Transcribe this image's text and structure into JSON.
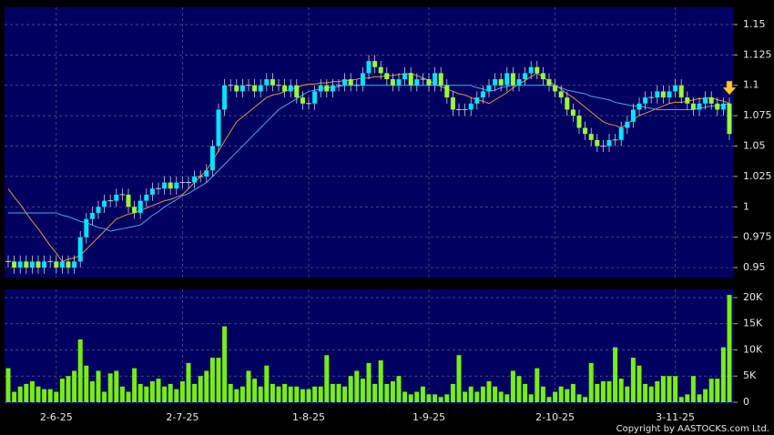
{
  "chart_data": [
    {
      "type": "candlestick",
      "open": [
        0.955,
        0.955,
        0.95,
        0.955,
        0.95,
        0.955,
        0.95,
        0.955,
        0.955,
        0.95,
        0.955,
        0.95,
        0.955,
        0.975,
        0.99,
        0.995,
        1.0,
        1.005,
        1.005,
        1.01,
        1.01,
        1.0,
        0.995,
        1.005,
        1.01,
        1.015,
        1.015,
        1.02,
        1.015,
        1.02,
        1.02,
        1.02,
        1.025,
        1.025,
        1.03,
        1.05,
        1.08,
        1.1,
        1.1,
        1.095,
        1.1,
        1.1,
        1.095,
        1.1,
        1.105,
        1.1,
        1.1,
        1.095,
        1.1,
        1.09,
        1.085,
        1.085,
        1.095,
        1.1,
        1.095,
        1.1,
        1.1,
        1.105,
        1.1,
        1.1,
        1.11,
        1.12,
        1.115,
        1.11,
        1.105,
        1.1,
        1.105,
        1.11,
        1.1,
        1.105,
        1.105,
        1.1,
        1.11,
        1.1,
        1.09,
        1.08,
        1.08,
        1.08,
        1.085,
        1.09,
        1.095,
        1.1,
        1.105,
        1.1,
        1.11,
        1.1,
        1.105,
        1.11,
        1.115,
        1.11,
        1.105,
        1.1,
        1.095,
        1.09,
        1.08,
        1.075,
        1.065,
        1.06,
        1.055,
        1.05,
        1.05,
        1.055,
        1.055,
        1.065,
        1.07,
        1.08,
        1.085,
        1.09,
        1.09,
        1.095,
        1.09,
        1.095,
        1.1,
        1.09,
        1.085,
        1.08,
        1.085,
        1.09,
        1.085,
        1.08,
        1.085
      ],
      "high": [
        0.96,
        0.96,
        0.96,
        0.96,
        0.96,
        0.96,
        0.96,
        0.96,
        0.96,
        0.96,
        0.96,
        0.96,
        0.98,
        0.995,
        1.0,
        1.005,
        1.01,
        1.01,
        1.015,
        1.015,
        1.015,
        1.005,
        1.01,
        1.015,
        1.02,
        1.02,
        1.025,
        1.025,
        1.025,
        1.025,
        1.025,
        1.03,
        1.03,
        1.035,
        1.055,
        1.085,
        1.105,
        1.105,
        1.105,
        1.105,
        1.105,
        1.105,
        1.105,
        1.11,
        1.11,
        1.105,
        1.105,
        1.105,
        1.105,
        1.095,
        1.09,
        1.1,
        1.105,
        1.105,
        1.105,
        1.105,
        1.11,
        1.11,
        1.105,
        1.115,
        1.125,
        1.125,
        1.12,
        1.115,
        1.11,
        1.11,
        1.115,
        1.115,
        1.11,
        1.11,
        1.11,
        1.115,
        1.115,
        1.105,
        1.095,
        1.085,
        1.085,
        1.09,
        1.095,
        1.1,
        1.105,
        1.11,
        1.11,
        1.115,
        1.115,
        1.11,
        1.115,
        1.12,
        1.12,
        1.115,
        1.11,
        1.105,
        1.1,
        1.095,
        1.085,
        1.08,
        1.07,
        1.065,
        1.06,
        1.055,
        1.06,
        1.06,
        1.07,
        1.075,
        1.085,
        1.09,
        1.095,
        1.095,
        1.1,
        1.1,
        1.1,
        1.105,
        1.105,
        1.095,
        1.09,
        1.09,
        1.095,
        1.095,
        1.09,
        1.09,
        1.09
      ],
      "low": [
        0.95,
        0.945,
        0.945,
        0.945,
        0.945,
        0.945,
        0.945,
        0.95,
        0.945,
        0.945,
        0.945,
        0.945,
        0.95,
        0.97,
        0.985,
        0.99,
        0.995,
        1.0,
        1.0,
        1.005,
        0.995,
        0.99,
        0.99,
        1.0,
        1.005,
        1.01,
        1.01,
        1.01,
        1.01,
        1.015,
        1.015,
        1.015,
        1.02,
        1.02,
        1.025,
        1.045,
        1.075,
        1.095,
        1.09,
        1.09,
        1.095,
        1.09,
        1.09,
        1.095,
        1.095,
        1.095,
        1.09,
        1.09,
        1.085,
        1.08,
        1.08,
        1.08,
        1.09,
        1.09,
        1.09,
        1.095,
        1.095,
        1.095,
        1.095,
        1.095,
        1.105,
        1.11,
        1.105,
        1.1,
        1.095,
        1.095,
        1.1,
        1.095,
        1.095,
        1.1,
        1.095,
        1.095,
        1.095,
        1.085,
        1.075,
        1.075,
        1.075,
        1.075,
        1.08,
        1.085,
        1.09,
        1.095,
        1.095,
        1.095,
        1.095,
        1.095,
        1.1,
        1.105,
        1.105,
        1.1,
        1.095,
        1.09,
        1.085,
        1.075,
        1.07,
        1.06,
        1.055,
        1.05,
        1.045,
        1.045,
        1.045,
        1.05,
        1.05,
        1.06,
        1.065,
        1.075,
        1.08,
        1.085,
        1.085,
        1.085,
        1.085,
        1.09,
        1.085,
        1.08,
        1.075,
        1.075,
        1.08,
        1.08,
        1.075,
        1.075,
        1.055
      ],
      "close": [
        0.955,
        0.95,
        0.955,
        0.95,
        0.955,
        0.95,
        0.955,
        0.955,
        0.95,
        0.955,
        0.95,
        0.955,
        0.975,
        0.99,
        0.995,
        1.0,
        1.005,
        1.005,
        1.01,
        1.01,
        1.0,
        0.995,
        1.005,
        1.01,
        1.015,
        1.015,
        1.02,
        1.015,
        1.02,
        1.02,
        1.02,
        1.025,
        1.025,
        1.03,
        1.05,
        1.08,
        1.1,
        1.1,
        1.095,
        1.1,
        1.1,
        1.095,
        1.1,
        1.105,
        1.1,
        1.1,
        1.095,
        1.1,
        1.09,
        1.085,
        1.085,
        1.095,
        1.1,
        1.095,
        1.1,
        1.1,
        1.105,
        1.1,
        1.1,
        1.11,
        1.12,
        1.115,
        1.11,
        1.105,
        1.1,
        1.105,
        1.11,
        1.1,
        1.105,
        1.105,
        1.1,
        1.11,
        1.1,
        1.09,
        1.08,
        1.08,
        1.08,
        1.085,
        1.09,
        1.095,
        1.1,
        1.105,
        1.1,
        1.11,
        1.1,
        1.105,
        1.11,
        1.115,
        1.11,
        1.105,
        1.1,
        1.095,
        1.09,
        1.08,
        1.075,
        1.065,
        1.06,
        1.055,
        1.05,
        1.05,
        1.055,
        1.055,
        1.065,
        1.07,
        1.08,
        1.085,
        1.09,
        1.09,
        1.095,
        1.09,
        1.095,
        1.1,
        1.09,
        1.085,
        1.08,
        1.085,
        1.09,
        1.085,
        1.08,
        1.085,
        1.06
      ],
      "series": [
        {
          "color": "#e8903a",
          "values": [
            1.015,
            1.008,
            1.002,
            0.995,
            0.988,
            0.982,
            0.975,
            0.968,
            0.962,
            0.955,
            0.957,
            0.958,
            0.96,
            0.965,
            0.97,
            0.975,
            0.98,
            0.985,
            0.99,
            0.992,
            0.994,
            0.995,
            0.997,
            0.999,
            1.001,
            1.003,
            1.005,
            1.006,
            1.008,
            1.01,
            1.015,
            1.02,
            1.025,
            1.03,
            1.038,
            1.046,
            1.054,
            1.062,
            1.07,
            1.074,
            1.078,
            1.082,
            1.086,
            1.09,
            1.092,
            1.093,
            1.095,
            1.097,
            1.098,
            1.1,
            1.101,
            1.101,
            1.102,
            1.102,
            1.103,
            1.103,
            1.104,
            1.104,
            1.105,
            1.106,
            1.106,
            1.107,
            1.107,
            1.108,
            1.108,
            1.109,
            1.109,
            1.11,
            1.108,
            1.106,
            1.104,
            1.101,
            1.099,
            1.097,
            1.095,
            1.093,
            1.092,
            1.09,
            1.088,
            1.087,
            1.085,
            1.088,
            1.091,
            1.094,
            1.098,
            1.101,
            1.104,
            1.107,
            1.11,
            1.107,
            1.103,
            1.1,
            1.097,
            1.093,
            1.09,
            1.086,
            1.082,
            1.078,
            1.074,
            1.07,
            1.068,
            1.067,
            1.065,
            1.068,
            1.072,
            1.075,
            1.077,
            1.079,
            1.081,
            1.083,
            1.085,
            1.086,
            1.086,
            1.087,
            1.088,
            1.089,
            1.089,
            1.09,
            1.088,
            1.087,
            1.085
          ]
        },
        {
          "color": "#4aa8e8",
          "values": [
            0.995,
            0.995,
            0.995,
            0.995,
            0.995,
            0.995,
            0.995,
            0.995,
            0.995,
            0.993,
            0.992,
            0.99,
            0.988,
            0.987,
            0.985,
            0.983,
            0.982,
            0.98,
            0.981,
            0.982,
            0.983,
            0.984,
            0.985,
            0.989,
            0.993,
            0.996,
            1.0,
            1.003,
            1.006,
            1.009,
            1.011,
            1.014,
            1.017,
            1.02,
            1.025,
            1.03,
            1.035,
            1.04,
            1.045,
            1.05,
            1.055,
            1.06,
            1.065,
            1.07,
            1.075,
            1.08,
            1.083,
            1.086,
            1.089,
            1.092,
            1.095,
            1.096,
            1.097,
            1.098,
            1.098,
            1.099,
            1.1,
            1.1,
            1.1,
            1.1,
            1.1,
            1.1,
            1.1,
            1.1,
            1.1,
            1.1,
            1.1,
            1.1,
            1.1,
            1.1,
            1.1,
            1.1,
            1.1,
            1.1,
            1.1,
            1.1,
            1.1,
            1.1,
            1.098,
            1.097,
            1.095,
            1.096,
            1.098,
            1.099,
            1.1,
            1.1,
            1.1,
            1.1,
            1.1,
            1.1,
            1.1,
            1.099,
            1.098,
            1.096,
            1.095,
            1.094,
            1.093,
            1.091,
            1.09,
            1.089,
            1.088,
            1.086,
            1.085,
            1.084,
            1.083,
            1.083,
            1.082,
            1.081,
            1.08,
            1.08,
            1.08,
            1.08,
            1.08,
            1.08,
            1.08,
            1.081,
            1.082,
            1.083,
            1.083,
            1.084,
            1.085
          ]
        }
      ],
      "up_color": "#00e5ff",
      "down_color": "#99ff33",
      "doji_color": "#c8c8d8",
      "ylim": [
        0.9418,
        1.1642
      ],
      "yticks": [
        0.95,
        0.975,
        1,
        1.025,
        1.05,
        1.075,
        1.1,
        1.125,
        1.15
      ],
      "grid": true
    },
    {
      "type": "bar",
      "categories": [
        null,
        null,
        null,
        null,
        null,
        null,
        null,
        null,
        "2-6-25",
        null,
        null,
        null,
        null,
        null,
        null,
        null,
        null,
        null,
        null,
        null,
        null,
        null,
        null,
        null,
        null,
        null,
        null,
        null,
        null,
        "2-7-25",
        null,
        null,
        null,
        null,
        null,
        null,
        null,
        null,
        null,
        null,
        null,
        null,
        null,
        null,
        null,
        null,
        null,
        null,
        null,
        null,
        "1-8-25",
        null,
        null,
        null,
        null,
        null,
        null,
        null,
        null,
        null,
        null,
        null,
        null,
        null,
        null,
        null,
        null,
        null,
        null,
        null,
        "1-9-25",
        null,
        null,
        null,
        null,
        null,
        null,
        null,
        null,
        null,
        null,
        null,
        null,
        null,
        null,
        null,
        null,
        null,
        null,
        null,
        null,
        "2-10-25",
        null,
        null,
        null,
        null,
        null,
        null,
        null,
        null,
        null,
        null,
        null,
        null,
        null,
        null,
        null,
        null,
        null,
        null,
        null,
        "3-11-25",
        null,
        null,
        null,
        null,
        null,
        null,
        null,
        null,
        null
      ],
      "values": [
        6500,
        2000,
        3000,
        3500,
        4000,
        3000,
        2500,
        2500,
        2000,
        4500,
        5000,
        6000,
        12000,
        7000,
        4000,
        6000,
        2000,
        5500,
        6000,
        3000,
        2000,
        6500,
        3500,
        3000,
        4000,
        4500,
        3000,
        3500,
        2500,
        4000,
        7500,
        3500,
        5000,
        6000,
        8500,
        8500,
        14500,
        3500,
        2500,
        3000,
        6000,
        4500,
        3000,
        7000,
        3500,
        3000,
        3500,
        3000,
        3000,
        2500,
        2500,
        3000,
        3000,
        9000,
        3500,
        3500,
        3000,
        5000,
        6000,
        4500,
        7500,
        3500,
        8000,
        3500,
        4000,
        5000,
        2000,
        1500,
        2000,
        3000,
        1500,
        1500,
        1000,
        1500,
        3500,
        9000,
        2000,
        3000,
        2000,
        3000,
        4000,
        3000,
        2000,
        1500,
        6000,
        5000,
        3500,
        1500,
        6500,
        3000,
        1000,
        2000,
        3000,
        2500,
        3500,
        1500,
        1000,
        7500,
        3500,
        4000,
        4000,
        10500,
        4500,
        3000,
        8500,
        7000,
        3500,
        3000,
        4000,
        5000,
        5000,
        5000,
        1000,
        1500,
        5000,
        1500,
        2500,
        4500,
        4500,
        10500,
        20500
      ],
      "color": "#77ee11",
      "ylim": [
        -350,
        21560
      ],
      "yticks": [
        0,
        {
          "value": 5000,
          "label": "5K"
        },
        {
          "value": 10000,
          "label": "10K"
        },
        {
          "value": 15000,
          "label": "15K"
        },
        {
          "value": 20000,
          "label": "20K"
        }
      ],
      "grid": true
    }
  ],
  "footer": {
    "copyright": "Copyright by AASTOCKS.com Ltd."
  }
}
